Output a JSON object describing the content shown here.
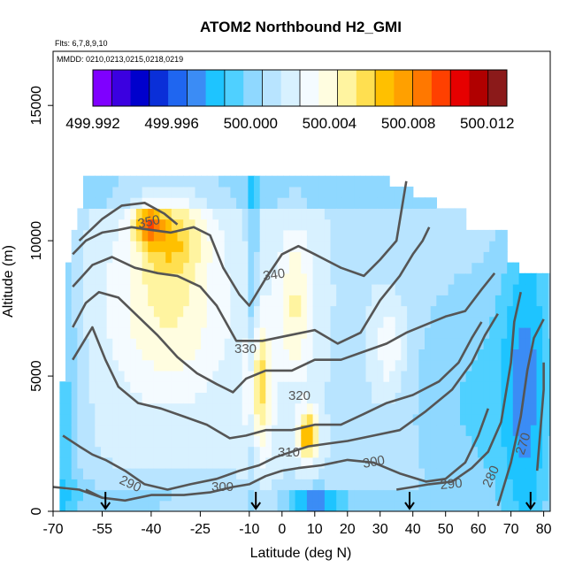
{
  "chart_data": {
    "type": "heatmap",
    "title": "ATOM2 Northbound H2_GMI",
    "info_lines": [
      "Flts: 6,7,8,9,10",
      "MMDD: 0210,0213,0215,0218,0219"
    ],
    "xlabel": "Latitude (deg N)",
    "ylabel": "Altitude (m)",
    "xlim": [
      -70,
      82
    ],
    "ylim": [
      0,
      17000
    ],
    "x_ticks": [
      -70,
      -55,
      -40,
      -25,
      -10,
      0,
      10,
      20,
      30,
      40,
      50,
      60,
      70,
      80
    ],
    "y_ticks": [
      0,
      5000,
      10000,
      15000
    ],
    "colorbar": {
      "min": 499.992,
      "max": 500.013,
      "tick_values": [
        499.992,
        499.996,
        500.0,
        500.004,
        500.008,
        500.012
      ],
      "tick_labels": [
        "499.992",
        "499.996",
        "500.000",
        "500.004",
        "500.008",
        "500.012"
      ],
      "colors": [
        "#7f00ff",
        "#3b00e0",
        "#0000cc",
        "#0a2fd8",
        "#1f66f0",
        "#3b8cf5",
        "#1ec4ff",
        "#4fd0ff",
        "#8fd8ff",
        "#b8e4ff",
        "#d8f1ff",
        "#f4fbff",
        "#fffde0",
        "#fff4a0",
        "#ffdf50",
        "#ffc000",
        "#ffa000",
        "#ff7800",
        "#ff4000",
        "#e60000",
        "#b00000",
        "#8b1a1a"
      ]
    },
    "contour_labels": [
      "350",
      "340",
      "330",
      "320",
      "310",
      "300",
      "300",
      "290",
      "290",
      "280",
      "270"
    ],
    "flight_markers_lat": [
      -54,
      -8,
      39,
      76
    ],
    "field_description_points": [
      {
        "lat": -42,
        "alt": 10500,
        "value": 500.011
      },
      {
        "lat": -30,
        "alt": 9500,
        "value": 500.007
      },
      {
        "lat": -8,
        "alt": 6000,
        "value": 500.006
      },
      {
        "lat": 8,
        "alt": 2800,
        "value": 500.011
      },
      {
        "lat": 10,
        "alt": 500,
        "value": 499.994
      },
      {
        "lat": -9,
        "alt": 8000,
        "value": 499.999
      }
    ]
  }
}
